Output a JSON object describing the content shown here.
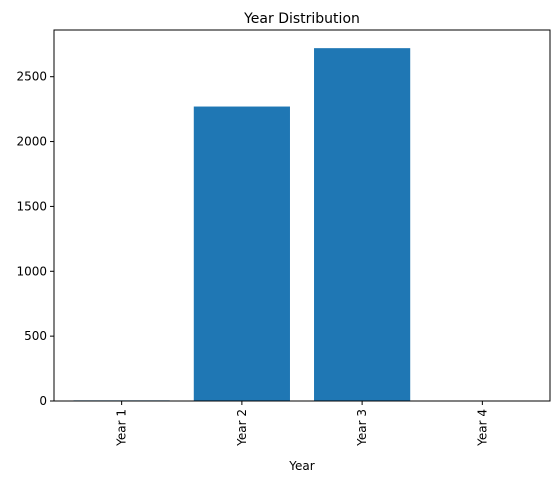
{
  "chart_data": {
    "type": "bar",
    "title": "Year Distribution",
    "xlabel": "Year",
    "ylabel": "",
    "categories": [
      "Year 1",
      "Year 2",
      "Year 3",
      "Year 4"
    ],
    "values": [
      5,
      2270,
      2720,
      0
    ],
    "ylim": [
      0,
      2860
    ],
    "yticks": [
      0,
      500,
      1000,
      1500,
      2000,
      2500
    ],
    "bar_color": "#1f77b4",
    "grid": false,
    "legend": "none"
  }
}
